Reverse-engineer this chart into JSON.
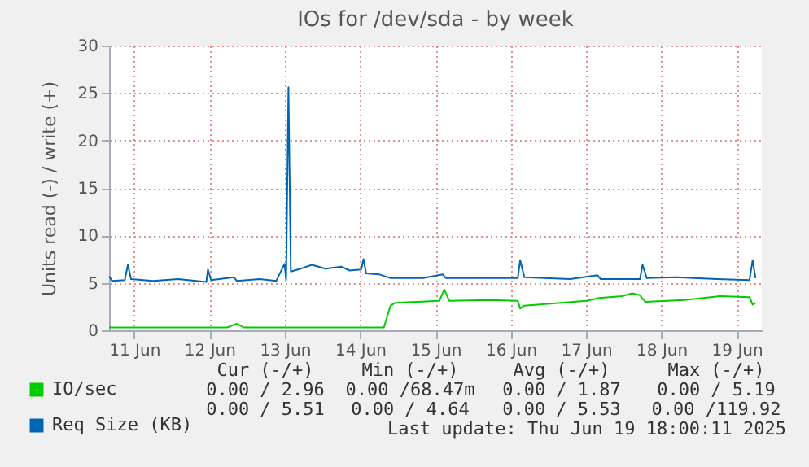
{
  "chart_data": {
    "type": "line",
    "title": "IOs for /dev/sda - by week",
    "ylabel": "Units read (-) / write (+)",
    "xlim": [
      "2025-06-11T04:00",
      "2025-06-19T20:00"
    ],
    "xticks": [
      {
        "value": "2025-06-11T12:00",
        "label": "11 Jun"
      },
      {
        "value": "2025-06-12T12:00",
        "label": "12 Jun"
      },
      {
        "value": "2025-06-13T12:00",
        "label": "13 Jun"
      },
      {
        "value": "2025-06-14T12:00",
        "label": "14 Jun"
      },
      {
        "value": "2025-06-15T12:00",
        "label": "15 Jun"
      },
      {
        "value": "2025-06-16T12:00",
        "label": "16 Jun"
      },
      {
        "value": "2025-06-17T12:00",
        "label": "17 Jun"
      },
      {
        "value": "2025-06-18T12:00",
        "label": "18 Jun"
      },
      {
        "value": "2025-06-19T12:00",
        "label": "19 Jun"
      }
    ],
    "ylim": [
      0,
      30
    ],
    "yticks": [
      0,
      5,
      10,
      15,
      20,
      25,
      30
    ],
    "grid": true,
    "legend": "bottom",
    "series": [
      {
        "name": "IO/sec",
        "color": "#00cc00",
        "x": [
          "2025-06-11T04:00",
          "2025-06-12T17:35",
          "2025-06-12T20:45",
          "2025-06-12T22:55",
          "2025-06-14T19:35",
          "2025-06-14T21:40",
          "2025-06-14T23:15",
          "2025-06-15T13:15",
          "2025-06-15T14:50",
          "2025-06-15T16:25",
          "2025-06-16T04:55",
          "2025-06-16T14:15",
          "2025-06-16T15:00",
          "2025-06-16T16:20",
          "2025-06-17T12:05",
          "2025-06-17T16:10",
          "2025-06-17T23:30",
          "2025-06-18T02:40",
          "2025-06-18T05:10",
          "2025-06-18T06:50",
          "2025-06-18T19:20",
          "2025-06-19T06:40",
          "2025-06-19T16:05",
          "2025-06-19T17:05",
          "2025-06-19T18:00"
        ],
        "values": [
          0.3,
          0.3,
          0.7,
          0.3,
          0.3,
          2.6,
          2.9,
          3.1,
          4.3,
          3.1,
          3.2,
          3.1,
          2.3,
          2.6,
          3.1,
          3.4,
          3.6,
          3.9,
          3.7,
          3.0,
          3.2,
          3.6,
          3.5,
          2.7,
          2.9
        ]
      },
      {
        "name": "Req Size (KB)",
        "color": "#0066b3",
        "x": [
          "2025-06-11T04:00",
          "2025-06-11T05:00",
          "2025-06-11T09:00",
          "2025-06-11T10:00",
          "2025-06-11T11:00",
          "2025-06-11T18:00",
          "2025-06-12T02:00",
          "2025-06-12T11:00",
          "2025-06-12T11:30",
          "2025-06-12T12:30",
          "2025-06-12T19:45",
          "2025-06-12T20:45",
          "2025-06-13T04:00",
          "2025-06-13T09:15",
          "2025-06-13T11:55",
          "2025-06-13T12:25",
          "2025-06-13T13:10",
          "2025-06-13T13:55",
          "2025-06-13T17:05",
          "2025-06-13T20:40",
          "2025-06-14T00:55",
          "2025-06-14T06:05",
          "2025-06-14T08:40",
          "2025-06-14T12:20",
          "2025-06-14T13:05",
          "2025-06-14T13:55",
          "2025-06-14T18:00",
          "2025-06-14T21:40",
          "2025-06-15T08:05",
          "2025-06-15T14:20",
          "2025-06-15T15:20",
          "2025-06-16T04:55",
          "2025-06-16T14:15",
          "2025-06-16T15:00",
          "2025-06-16T16:20",
          "2025-06-17T06:55",
          "2025-06-17T15:40",
          "2025-06-17T16:40",
          "2025-06-18T05:10",
          "2025-06-18T06:00",
          "2025-06-18T07:20",
          "2025-06-18T16:40",
          "2025-06-19T05:40",
          "2025-06-19T16:05",
          "2025-06-19T17:05",
          "2025-06-19T18:00"
        ],
        "values": [
          5.7,
          5.2,
          5.3,
          6.9,
          5.4,
          5.2,
          5.4,
          5.1,
          6.4,
          5.3,
          5.6,
          5.2,
          5.4,
          5.2,
          7.0,
          5.3,
          25.6,
          6.2,
          6.5,
          6.9,
          6.5,
          6.7,
          6.3,
          6.4,
          7.5,
          6.0,
          5.9,
          5.5,
          5.5,
          5.9,
          5.5,
          5.5,
          5.5,
          7.4,
          5.6,
          5.4,
          5.8,
          5.4,
          5.4,
          6.9,
          5.5,
          5.6,
          5.4,
          5.3,
          7.4,
          5.5
        ]
      }
    ],
    "annotations": [
      "Cur (-/+)",
      "Min (-/+)",
      "Avg (-/+)",
      "Max (-/+)",
      "0.00 / 2.96",
      "0.00 /68.47m",
      "0.00 / 1.87",
      "0.00 / 5.19",
      "0.00 / 5.51",
      "0.00 / 4.64",
      "0.00 / 5.53",
      "0.00 /119.92",
      "Last update: Thu Jun 19 18:00:11 2025"
    ]
  }
}
